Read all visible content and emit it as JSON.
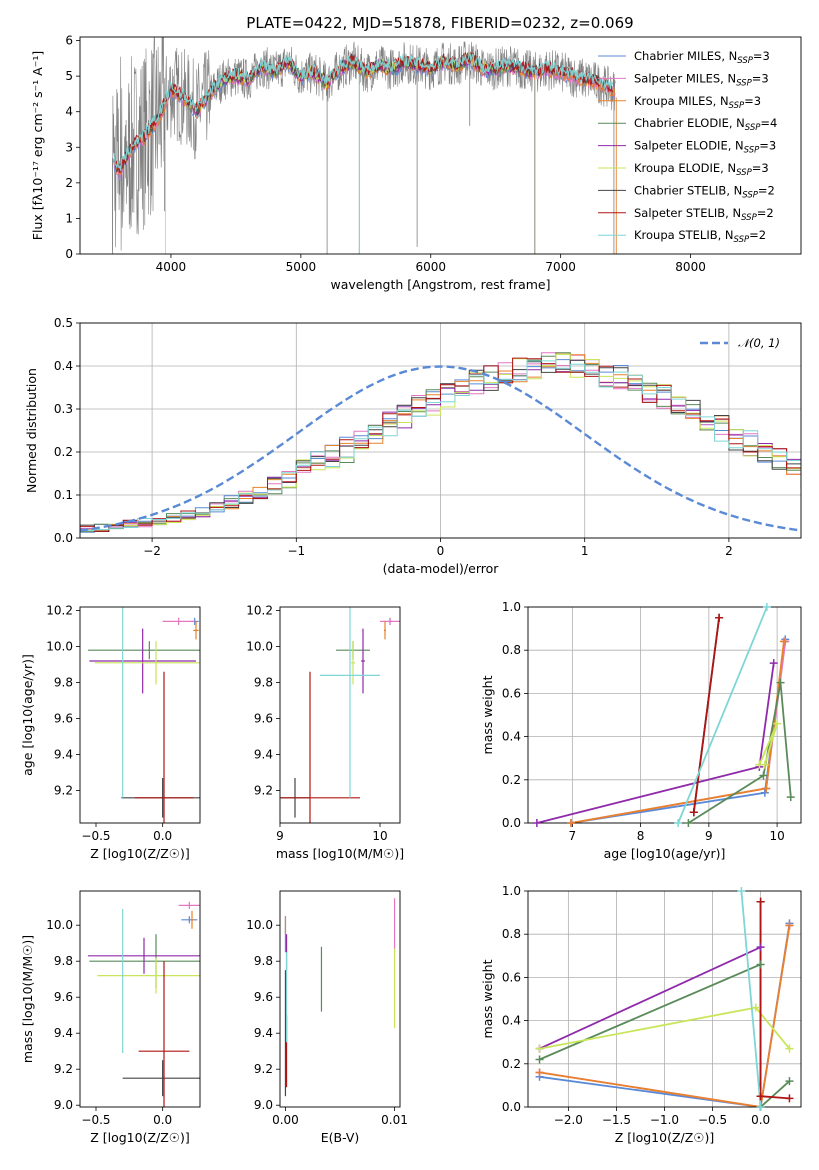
{
  "figure_title": "PLATE=0422, MJD=51878, FIBERID=0232, z=0.069",
  "colors": {
    "Chabrier MILES": "#5a8ad6",
    "Salpeter MILES": "#e377c2",
    "Kroupa MILES": "#e8822a",
    "Chabrier ELODIE": "#5a8a5a",
    "Salpeter ELODIE": "#8f2aaa",
    "Kroupa ELODIE": "#c9e55a",
    "Chabrier STELIB": "#444444",
    "Salpeter STELIB": "#b01515",
    "Kroupa STELIB": "#7fd6d6",
    "data": "#808080",
    "normal": "#5a8ad6"
  },
  "legend_spectrum": [
    {
      "name": "Chabrier MILES",
      "label": "Chabrier MILES, N",
      "sub": "SSP",
      "tail": "=3"
    },
    {
      "name": "Salpeter MILES",
      "label": "Salpeter MILES, N",
      "sub": "SSP",
      "tail": "=3"
    },
    {
      "name": "Kroupa MILES",
      "label": "Kroupa MILES, N",
      "sub": "SSP",
      "tail": "=3"
    },
    {
      "name": "Chabrier ELODIE",
      "label": "Chabrier ELODIE, N",
      "sub": "SSP",
      "tail": "=4"
    },
    {
      "name": "Salpeter ELODIE",
      "label": "Salpeter ELODIE, N",
      "sub": "SSP",
      "tail": "=3"
    },
    {
      "name": "Kroupa ELODIE",
      "label": "Kroupa ELODIE, N",
      "sub": "SSP",
      "tail": "=3"
    },
    {
      "name": "Chabrier STELIB",
      "label": "Chabrier STELIB, N",
      "sub": "SSP",
      "tail": "=2"
    },
    {
      "name": "Salpeter STELIB",
      "label": "Salpeter STELIB, N",
      "sub": "SSP",
      "tail": "=2"
    },
    {
      "name": "Kroupa STELIB",
      "label": "Kroupa STELIB, N",
      "sub": "SSP",
      "tail": "=2"
    }
  ],
  "chart_data": [
    {
      "id": "spectrum",
      "type": "line",
      "xlabel": "wavelength [Angstrom, rest frame]",
      "ylabel": "Flux [fλ10⁻¹⁷ erg cm⁻² s⁻¹ A⁻¹]",
      "xlim": [
        3300,
        8850
      ],
      "ylim": [
        0,
        6.1
      ],
      "xticks": [
        4000,
        5000,
        6000,
        7000,
        8000
      ],
      "yticks": [
        0,
        1,
        2,
        3,
        4,
        5,
        6
      ],
      "model_continuum": {
        "x": [
          3550,
          3600,
          3700,
          3800,
          3900,
          4000,
          4100,
          4200,
          4300,
          4400,
          4500,
          4600,
          4700,
          4800,
          4900,
          5000,
          5100,
          5200,
          5300,
          5400,
          5500,
          5600,
          5700,
          5800,
          5900,
          6000,
          6100,
          6200,
          6300,
          6400,
          6500,
          6600,
          6700,
          6800,
          6900,
          7000,
          7100,
          7200,
          7300,
          7400
        ],
        "y": [
          2.7,
          2.3,
          3.0,
          3.3,
          3.8,
          4.6,
          4.4,
          4.0,
          4.5,
          4.9,
          5.0,
          4.9,
          5.3,
          5.1,
          5.4,
          5.0,
          5.1,
          4.8,
          5.2,
          5.4,
          5.1,
          5.3,
          5.2,
          5.4,
          5.3,
          5.2,
          5.4,
          5.3,
          5.5,
          5.2,
          5.2,
          5.3,
          5.2,
          5.1,
          5.2,
          5.1,
          5.0,
          4.9,
          4.8,
          4.6
        ]
      }
    },
    {
      "id": "residuals",
      "type": "histogram",
      "xlabel": "(data-model)/error",
      "ylabel": "Normed distribution",
      "xlim": [
        -2.5,
        2.5
      ],
      "ylim": [
        0,
        0.5
      ],
      "xticks": [
        -2,
        -1,
        0,
        1,
        2
      ],
      "yticks": [
        0.0,
        0.1,
        0.2,
        0.3,
        0.4,
        0.5
      ],
      "legend": "𝒩(0, 1)",
      "bin_width": 0.1,
      "bin_start": -2.5,
      "mean_values": [
        0.022,
        0.024,
        0.028,
        0.032,
        0.036,
        0.04,
        0.047,
        0.054,
        0.06,
        0.07,
        0.083,
        0.095,
        0.109,
        0.123,
        0.139,
        0.158,
        0.177,
        0.19,
        0.205,
        0.23,
        0.245,
        0.266,
        0.283,
        0.302,
        0.315,
        0.33,
        0.349,
        0.362,
        0.372,
        0.38,
        0.389,
        0.395,
        0.402,
        0.405,
        0.398,
        0.392,
        0.381,
        0.372,
        0.358,
        0.344,
        0.327,
        0.312,
        0.294,
        0.276,
        0.255,
        0.232,
        0.22,
        0.2,
        0.181,
        0.158,
        0.139,
        0.124,
        0.109,
        0.095,
        0.082,
        0.071,
        0.06,
        0.049,
        0.04,
        0.033,
        0.028,
        0.024,
        0.022,
        0.02,
        0.019,
        0.018,
        0.018,
        0.017,
        0.017,
        0.016
      ]
    },
    {
      "id": "age-vs-Z",
      "type": "errorbar",
      "xlabel": "Z [log10(Z/Z☉)]",
      "ylabel": "age [log10(age/yr)]",
      "xlim": [
        -0.62,
        0.28
      ],
      "ylim": [
        9.02,
        10.22
      ],
      "xticks": [
        -0.5,
        0.0
      ],
      "yticks": [
        9.2,
        9.4,
        9.6,
        9.8,
        10.0,
        10.2
      ],
      "points": [
        {
          "model": "Chabrier MILES",
          "x": 0.24,
          "y": 10.14,
          "xerr": 0.03,
          "yerr": 0.02
        },
        {
          "model": "Salpeter MILES",
          "x": 0.12,
          "y": 10.14,
          "xerr": 0.12,
          "yerr": 0.02
        },
        {
          "model": "Kroupa MILES",
          "x": 0.25,
          "y": 10.09,
          "xerr": 0.02,
          "yerr": 0.05
        },
        {
          "model": "Chabrier ELODIE",
          "x": -0.1,
          "y": 9.98,
          "xerr": 0.46,
          "yerr": 0.05
        },
        {
          "model": "Salpeter ELODIE",
          "x": -0.15,
          "y": 9.92,
          "xerr": 0.4,
          "yerr": 0.18
        },
        {
          "model": "Kroupa ELODIE",
          "x": -0.05,
          "y": 9.91,
          "xerr": 0.46,
          "yerr": 0.12
        },
        {
          "model": "Chabrier STELIB",
          "x": 0.0,
          "y": 9.16,
          "xerr": 0.31,
          "yerr": 0.11
        },
        {
          "model": "Salpeter STELIB",
          "x": 0.01,
          "y": 9.16,
          "xerr": 0.22,
          "yerr": 0.7
        },
        {
          "model": "Kroupa STELIB",
          "x": -0.3,
          "y": 9.84,
          "xerr": 0.0,
          "yerr": 0.68
        }
      ]
    },
    {
      "id": "age-vs-mass",
      "type": "errorbar",
      "xlabel": "mass [log10(M/M☉)]",
      "ylabel": "",
      "xlim": [
        9.0,
        10.2
      ],
      "ylim": [
        9.02,
        10.22
      ],
      "xticks": [
        9,
        10
      ],
      "yticks": [
        9.2,
        9.4,
        9.6,
        9.8,
        10.0,
        10.2
      ],
      "points": [
        {
          "model": "Chabrier MILES",
          "x": 10.1,
          "y": 10.14,
          "xerr": 0.02,
          "yerr": 0.02
        },
        {
          "model": "Salpeter MILES",
          "x": 10.1,
          "y": 10.14,
          "xerr": 0.1,
          "yerr": 0.02
        },
        {
          "model": "Kroupa MILES",
          "x": 10.05,
          "y": 10.09,
          "xerr": 0.01,
          "yerr": 0.05
        },
        {
          "model": "Chabrier ELODIE",
          "x": 9.73,
          "y": 9.98,
          "xerr": 0.17,
          "yerr": 0.05
        },
        {
          "model": "Salpeter ELODIE",
          "x": 9.83,
          "y": 9.92,
          "xerr": 0.02,
          "yerr": 0.18
        },
        {
          "model": "Kroupa ELODIE",
          "x": 9.73,
          "y": 9.91,
          "xerr": 0.02,
          "yerr": 0.12
        },
        {
          "model": "Chabrier STELIB",
          "x": 9.15,
          "y": 9.16,
          "xerr": 0.14,
          "yerr": 0.11
        },
        {
          "model": "Salpeter STELIB",
          "x": 9.3,
          "y": 9.16,
          "xerr": 0.5,
          "yerr": 0.7
        },
        {
          "model": "Kroupa STELIB",
          "x": 9.7,
          "y": 9.84,
          "xerr": 0.3,
          "yerr": 0.68
        }
      ]
    },
    {
      "id": "weight-vs-age",
      "type": "line",
      "xlabel": "age [log10(age/yr)]",
      "ylabel": "mass weight",
      "xlim": [
        6.35,
        10.35
      ],
      "ylim": [
        0,
        1
      ],
      "xticks": [
        7,
        8,
        9,
        10
      ],
      "yticks": [
        0.0,
        0.2,
        0.4,
        0.6,
        0.8,
        1.0
      ],
      "series": [
        {
          "model": "Chabrier MILES",
          "points": [
            [
              6.98,
              0.0
            ],
            [
              9.82,
              0.14
            ],
            [
              10.12,
              0.85
            ]
          ]
        },
        {
          "model": "Salpeter MILES",
          "points": [
            [
              6.98,
              0.0
            ],
            [
              9.84,
              0.16
            ],
            [
              10.12,
              0.84
            ]
          ]
        },
        {
          "model": "Kroupa MILES",
          "points": [
            [
              6.98,
              0.0
            ],
            [
              9.84,
              0.16
            ],
            [
              10.1,
              0.84
            ]
          ]
        },
        {
          "model": "Chabrier ELODIE",
          "points": [
            [
              8.7,
              0.0
            ],
            [
              9.8,
              0.22
            ],
            [
              10.05,
              0.65
            ],
            [
              10.2,
              0.12
            ]
          ]
        },
        {
          "model": "Salpeter ELODIE",
          "points": [
            [
              6.48,
              0.0
            ],
            [
              9.74,
              0.26
            ],
            [
              9.95,
              0.74
            ]
          ]
        },
        {
          "model": "Kroupa ELODIE",
          "points": [
            [
              9.74,
              0.27
            ],
            [
              10.0,
              0.46
            ],
            [
              9.82,
              0.27
            ]
          ]
        },
        {
          "model": "Chabrier STELIB",
          "points": [
            [
              8.78,
              0.05
            ],
            [
              9.15,
              0.95
            ]
          ]
        },
        {
          "model": "Salpeter STELIB",
          "points": [
            [
              8.78,
              0.05
            ],
            [
              9.15,
              0.95
            ]
          ]
        },
        {
          "model": "Kroupa STELIB",
          "points": [
            [
              8.55,
              0.0
            ],
            [
              9.85,
              1.0
            ]
          ]
        }
      ]
    },
    {
      "id": "mass-vs-Z",
      "type": "errorbar",
      "xlabel": "Z [log10(Z/Z☉)]",
      "ylabel": "mass [log10(M/M☉)]",
      "xlim": [
        -0.62,
        0.28
      ],
      "ylim": [
        8.99,
        10.19
      ],
      "xticks": [
        -0.5,
        0.0
      ],
      "yticks": [
        9.0,
        9.2,
        9.4,
        9.6,
        9.8,
        10.0
      ],
      "points": [
        {
          "model": "Chabrier MILES",
          "x": 0.2,
          "y": 10.03,
          "xerr": 0.06,
          "yerr": 0.02
        },
        {
          "model": "Salpeter MILES",
          "x": 0.2,
          "y": 10.11,
          "xerr": 0.08,
          "yerr": 0.02
        },
        {
          "model": "Kroupa MILES",
          "x": 0.22,
          "y": 10.03,
          "xerr": 0.01,
          "yerr": 0.05
        },
        {
          "model": "Chabrier ELODIE",
          "x": -0.05,
          "y": 9.8,
          "xerr": 0.5,
          "yerr": 0.15
        },
        {
          "model": "Salpeter ELODIE",
          "x": -0.14,
          "y": 9.83,
          "xerr": 0.42,
          "yerr": 0.1
        },
        {
          "model": "Kroupa ELODIE",
          "x": -0.05,
          "y": 9.72,
          "xerr": 0.44,
          "yerr": 0.1
        },
        {
          "model": "Chabrier STELIB",
          "x": 0.0,
          "y": 9.15,
          "xerr": 0.3,
          "yerr": 0.1
        },
        {
          "model": "Salpeter STELIB",
          "x": 0.01,
          "y": 9.3,
          "xerr": 0.19,
          "yerr": 0.5
        },
        {
          "model": "Kroupa STELIB",
          "x": -0.3,
          "y": 9.69,
          "xerr": 0.0,
          "yerr": 0.4
        }
      ]
    },
    {
      "id": "mass-vs-EBV",
      "type": "errorbar",
      "xlabel": "E(B-V)",
      "ylabel": "",
      "xlim": [
        -0.0005,
        0.0105
      ],
      "ylim": [
        8.99,
        10.19
      ],
      "xticks": [
        0.0,
        0.01
      ],
      "yticks": [
        9.0,
        9.2,
        9.4,
        9.6,
        9.8,
        10.0
      ],
      "points": [
        {
          "model": "Chabrier MILES",
          "x": 0.0,
          "y": 9.95,
          "xerr": 0.0,
          "yerr": 0.1
        },
        {
          "model": "Salpeter MILES",
          "x": 0.01,
          "y": 10.0,
          "xerr": 0.0,
          "yerr": 0.15
        },
        {
          "model": "Kroupa MILES",
          "x": 0.0,
          "y": 10.0,
          "xerr": 0.0,
          "yerr": 0.05
        },
        {
          "model": "Chabrier ELODIE",
          "x": 0.0033,
          "y": 9.7,
          "xerr": 0.0,
          "yerr": 0.18
        },
        {
          "model": "Salpeter ELODIE",
          "x": 0.0001,
          "y": 9.85,
          "xerr": 0.0,
          "yerr": 0.1
        },
        {
          "model": "Kroupa ELODIE",
          "x": 0.01,
          "y": 9.65,
          "xerr": 0.0,
          "yerr": 0.22
        },
        {
          "model": "Chabrier STELIB",
          "x": 0.0,
          "y": 9.4,
          "xerr": 0.0,
          "yerr": 0.35
        },
        {
          "model": "Salpeter STELIB",
          "x": 0.0001,
          "y": 9.3,
          "xerr": 0.0,
          "yerr": 0.2
        },
        {
          "model": "Kroupa STELIB",
          "x": 0.0001,
          "y": 9.6,
          "xerr": 0.0,
          "yerr": 0.25
        }
      ]
    },
    {
      "id": "weight-vs-Z",
      "type": "line",
      "xlabel": "Z [log10(Z/Z☉)]",
      "ylabel": "mass weight",
      "xlim": [
        -2.42,
        0.42
      ],
      "ylim": [
        0,
        1
      ],
      "xticks": [
        -2.0,
        -1.5,
        -1.0,
        -0.5,
        0.0
      ],
      "yticks": [
        0.0,
        0.2,
        0.4,
        0.6,
        0.8,
        1.0
      ],
      "series": [
        {
          "model": "Chabrier MILES",
          "points": [
            [
              -2.3,
              0.14
            ],
            [
              0.0,
              0.0
            ],
            [
              0.3,
              0.85
            ]
          ]
        },
        {
          "model": "Salpeter MILES",
          "points": [
            [
              -2.3,
              0.16
            ],
            [
              0.0,
              0.0
            ],
            [
              0.3,
              0.84
            ]
          ]
        },
        {
          "model": "Kroupa MILES",
          "points": [
            [
              -2.3,
              0.16
            ],
            [
              0.0,
              0.0
            ],
            [
              0.3,
              0.84
            ]
          ]
        },
        {
          "model": "Chabrier ELODIE",
          "points": [
            [
              -2.3,
              0.22
            ],
            [
              0.0,
              0.66
            ],
            [
              0.0,
              0.0
            ],
            [
              0.3,
              0.12
            ]
          ]
        },
        {
          "model": "Salpeter ELODIE",
          "points": [
            [
              -2.3,
              0.27
            ],
            [
              0.0,
              0.74
            ]
          ]
        },
        {
          "model": "Kroupa ELODIE",
          "points": [
            [
              -2.3,
              0.27
            ],
            [
              -0.05,
              0.46
            ],
            [
              0.3,
              0.27
            ]
          ]
        },
        {
          "model": "Chabrier STELIB",
          "points": [
            [
              0.0,
              0.95
            ],
            [
              0.0,
              0.05
            ]
          ]
        },
        {
          "model": "Salpeter STELIB",
          "points": [
            [
              0.0,
              0.95
            ],
            [
              0.0,
              0.05
            ],
            [
              0.3,
              0.04
            ]
          ]
        },
        {
          "model": "Kroupa STELIB",
          "points": [
            [
              -0.2,
              1.0
            ],
            [
              0.0,
              0.0
            ]
          ]
        }
      ]
    }
  ]
}
